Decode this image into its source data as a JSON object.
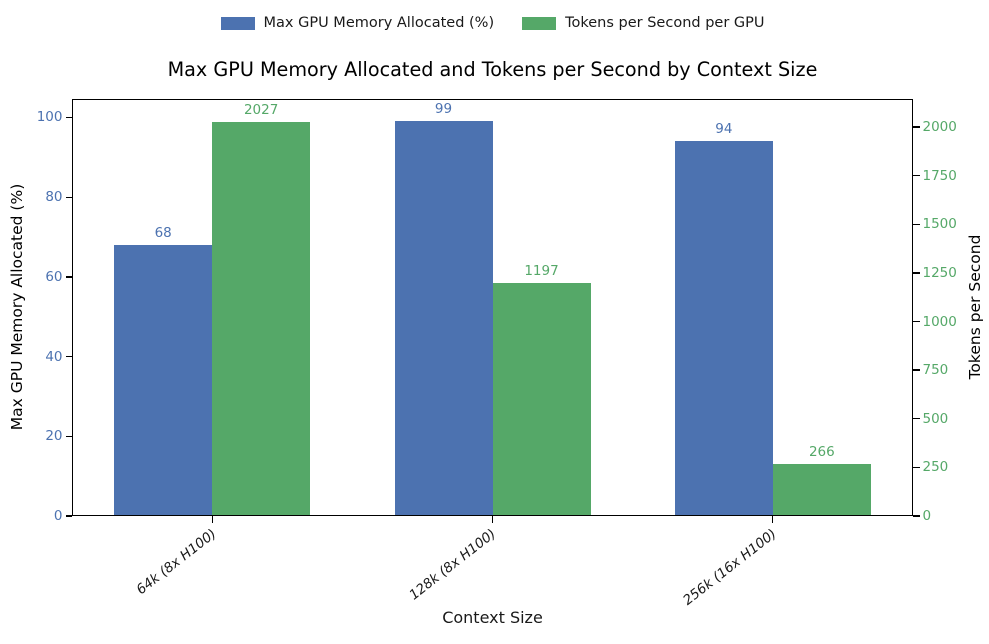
{
  "chart_data": {
    "type": "bar",
    "title": "Max GPU Memory Allocated and Tokens per Second by Context Size",
    "categories": [
      "64k (8x H100)",
      "128k (8x H100)",
      "256k (16x H100)"
    ],
    "series": [
      {
        "name": "Max GPU Memory Allocated (%)",
        "axis": "left",
        "color": "#4C72B0",
        "values": [
          68,
          99,
          94
        ]
      },
      {
        "name": "Tokens per Second per GPU",
        "axis": "right",
        "color": "#55A868",
        "values": [
          2027,
          1197,
          266
        ]
      }
    ],
    "axes": {
      "x": {
        "label": "Context Size",
        "tick_rotation_deg": -38
      },
      "left": {
        "label": "Max GPU Memory Allocated (%)",
        "color": "#4C72B0",
        "ticks": [
          0,
          20,
          40,
          60,
          80,
          100
        ],
        "lim": [
          0,
          104.64
        ]
      },
      "right": {
        "label": "Tokens per Second",
        "color": "#55A868",
        "ticks": [
          0,
          250,
          500,
          750,
          1000,
          1250,
          1500,
          1750,
          2000
        ],
        "lim": [
          0,
          2144
        ]
      }
    },
    "legend_position": "top-center",
    "grid": false,
    "bar_value_labels": true
  }
}
